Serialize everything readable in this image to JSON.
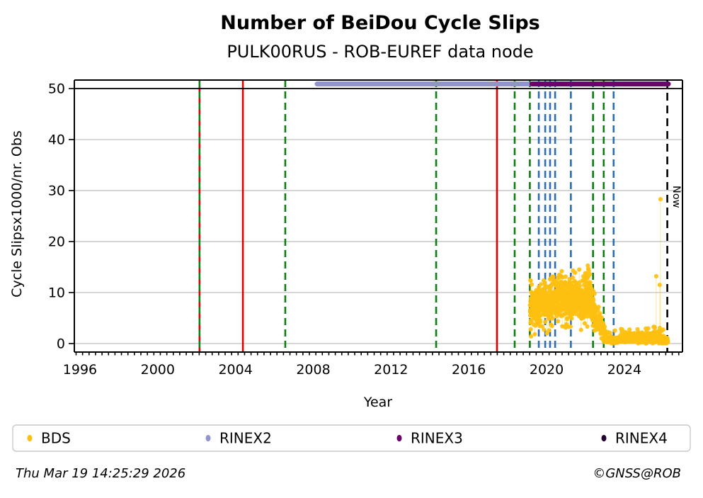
{
  "header": {
    "title": "Number of BeiDou Cycle Slips",
    "subtitle": "PULK00RUS - ROB-EUREF data node"
  },
  "footer": {
    "generated": "Thu Mar 19 14:25:29 2026",
    "credit": "©GNSS@ROB"
  },
  "chart_data": {
    "type": "scatter",
    "title": "Number of BeiDou Cycle Slips",
    "subtitle": "PULK00RUS - ROB-EUREF data node",
    "xlabel": "Year",
    "ylabel": "Cycle Slipsx1000/nr. Obs",
    "xlim": [
      1995.71,
      2026.99
    ],
    "ylim": [
      -1.67,
      51.67
    ],
    "xticks": [
      1996,
      2000,
      2004,
      2008,
      2012,
      2016,
      2020,
      2024
    ],
    "x_minor_step": 0.3333,
    "yticks": [
      0,
      10,
      20,
      30,
      40,
      50
    ],
    "grid": "horizontal-gray",
    "cutoff_line_y": 50,
    "now": {
      "label": "Now",
      "year": 2026.21
    },
    "colors": {
      "green": "#0e7d12",
      "red": "#e00000",
      "blue": "#2e6db4",
      "black": "#000000",
      "grid": "#c6c6c6",
      "bds": "#fdc010",
      "bds_line": "rgba(253,192,16,0.38)",
      "rinex2": "#9295cd",
      "rinex3": "#6d006b",
      "rinex4": "#230031"
    },
    "event_lines": [
      {
        "year": 2002.15,
        "color": "green",
        "style": "dashed",
        "under_color": "red"
      },
      {
        "year": 2004.38,
        "color": "red",
        "style": "solid"
      },
      {
        "year": 2006.56,
        "color": "green",
        "style": "dashed"
      },
      {
        "year": 2014.32,
        "color": "green",
        "style": "dashed"
      },
      {
        "year": 2017.45,
        "color": "red",
        "style": "solid"
      },
      {
        "year": 2018.36,
        "color": "green",
        "style": "dashed"
      },
      {
        "year": 2019.14,
        "color": "green",
        "style": "dashed"
      },
      {
        "year": 2019.6,
        "color": "blue",
        "style": "dashed"
      },
      {
        "year": 2019.93,
        "color": "blue",
        "style": "dashed"
      },
      {
        "year": 2020.18,
        "color": "blue",
        "style": "dashed"
      },
      {
        "year": 2020.44,
        "color": "blue",
        "style": "dashed"
      },
      {
        "year": 2021.25,
        "color": "blue",
        "style": "dashed"
      },
      {
        "year": 2022.39,
        "color": "green",
        "style": "dashed"
      },
      {
        "year": 2022.94,
        "color": "green",
        "style": "dashed"
      },
      {
        "year": 2023.45,
        "color": "blue",
        "style": "dashed"
      }
    ],
    "spans": [
      {
        "name": "RINEX2",
        "start": 2008.09,
        "end": 2019.14,
        "y": 50.9,
        "color_key": "rinex2"
      },
      {
        "name": "RINEX3",
        "start": 2019.14,
        "end": 2026.37,
        "y": 50.9,
        "color_key": "rinex3"
      }
    ],
    "legend": [
      {
        "label": "BDS",
        "color": "#fdc010"
      },
      {
        "label": "RINEX2",
        "color": "#9295cd"
      },
      {
        "label": "RINEX3",
        "color": "#6d006b"
      },
      {
        "label": "RINEX4",
        "color": "#230031"
      }
    ],
    "series": [
      {
        "name": "BDS",
        "color": "#fdc010",
        "marker_px": 3.1,
        "start": 2019.15,
        "end": 2026.24,
        "step": 0.0045,
        "seed": 42,
        "band": [
          [
            2019.15,
            1.0,
            12.5
          ],
          [
            2019.3,
            2.5,
            10.0
          ],
          [
            2019.55,
            3.5,
            10.5
          ],
          [
            2019.8,
            4.0,
            11.5
          ],
          [
            2020.05,
            3.0,
            11.0
          ],
          [
            2020.35,
            4.5,
            12.0
          ],
          [
            2020.65,
            5.0,
            12.8
          ],
          [
            2020.95,
            4.0,
            13.2
          ],
          [
            2021.15,
            3.5,
            12.0
          ],
          [
            2021.45,
            5.0,
            13.5
          ],
          [
            2021.75,
            4.0,
            13.0
          ],
          [
            2021.95,
            3.0,
            12.0
          ],
          [
            2022.1,
            4.5,
            14.6
          ],
          [
            2022.3,
            3.5,
            11.0
          ],
          [
            2022.5,
            2.5,
            8.0
          ],
          [
            2022.7,
            2.0,
            6.0
          ],
          [
            2022.9,
            1.0,
            4.5
          ],
          [
            2023.05,
            0.3,
            2.0
          ],
          [
            2023.2,
            0.0,
            1.2
          ],
          [
            2023.6,
            0.05,
            1.3
          ],
          [
            2024.1,
            0.1,
            1.9
          ],
          [
            2024.6,
            0.15,
            2.0
          ],
          [
            2025.1,
            0.1,
            1.7
          ],
          [
            2025.55,
            0.15,
            2.1
          ],
          [
            2025.95,
            0.05,
            1.5
          ],
          [
            2026.22,
            0.05,
            1.1
          ]
        ],
        "peaks": [
          [
            2019.17,
            12.4
          ],
          [
            2020.78,
            14.2
          ],
          [
            2021.47,
            13.9
          ],
          [
            2022.12,
            15.3
          ],
          [
            2022.15,
            14.7
          ]
        ],
        "outliers": [
          [
            2025.64,
            13.2
          ],
          [
            2025.82,
            11.5
          ],
          [
            2025.86,
            28.3
          ]
        ]
      }
    ]
  }
}
